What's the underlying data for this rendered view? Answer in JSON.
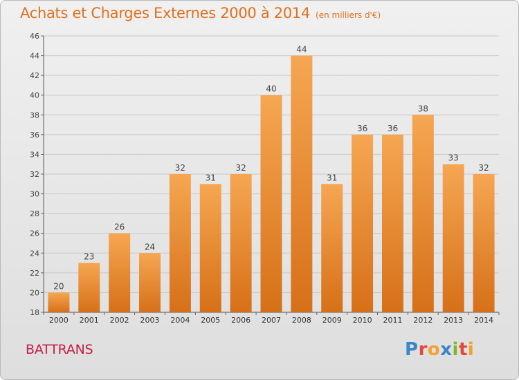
{
  "title": "Achats et Charges Externes 2000 à 2014",
  "unit": "(en milliers d'€)",
  "entity": "BATTRANS",
  "logo": {
    "text": "Proxiti",
    "letters": [
      "P",
      "r",
      "o",
      "x",
      "i",
      "t",
      "i"
    ]
  },
  "colors": {
    "bar_light": "#f6a652",
    "bar_dark": "#d67018",
    "title": "#e0701e",
    "entity": "#c41e4a",
    "grid": "#c8c8c8"
  },
  "chart_data": {
    "type": "bar",
    "categories": [
      "2000",
      "2001",
      "2002",
      "2003",
      "2004",
      "2005",
      "2006",
      "2007",
      "2008",
      "2009",
      "2010",
      "2011",
      "2012",
      "2013",
      "2014"
    ],
    "values": [
      20,
      23,
      26,
      24,
      32,
      31,
      32,
      40,
      44,
      31,
      36,
      36,
      38,
      33,
      32
    ],
    "ylim": [
      18,
      46
    ],
    "yticks": [
      18,
      20,
      22,
      24,
      26,
      28,
      30,
      32,
      34,
      36,
      38,
      40,
      42,
      44,
      46
    ],
    "grid": true,
    "data_labels": true
  }
}
